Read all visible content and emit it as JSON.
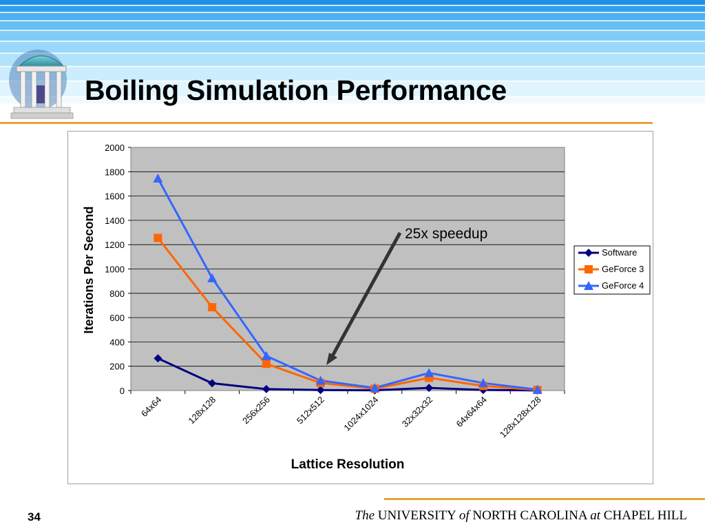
{
  "slide": {
    "title": "Boiling Simulation Performance",
    "page_number": "34",
    "footer": {
      "the": "The",
      "university": "UNIVERSITY",
      "of": "of",
      "state": "NORTH CAROLINA",
      "at": "at",
      "city": "CHAPEL HILL"
    },
    "logo_icon": "old-well-icon",
    "accent_color": "#E8A33A"
  },
  "chart_data": {
    "type": "line",
    "title": "",
    "xlabel": "Lattice Resolution",
    "ylabel": "Iterations Per Second",
    "categories": [
      "64x64",
      "128x128",
      "256x256",
      "512x512",
      "1024x1024",
      "32x32x32",
      "64x64x64",
      "128x128x128"
    ],
    "ylim": [
      0,
      2000
    ],
    "yticks": [
      0,
      200,
      400,
      600,
      800,
      1000,
      1200,
      1400,
      1600,
      1800,
      2000
    ],
    "grid": true,
    "legend_position": "right",
    "series": [
      {
        "name": "Software",
        "color": "#000080",
        "marker": "diamond",
        "values": [
          265,
          60,
          12,
          4,
          2,
          22,
          5,
          1
        ]
      },
      {
        "name": "GeForce 3",
        "color": "#FF6600",
        "marker": "square",
        "values": [
          1255,
          685,
          220,
          62,
          15,
          105,
          38,
          5
        ]
      },
      {
        "name": "GeForce 4",
        "color": "#3366FF",
        "marker": "triangle",
        "values": [
          1745,
          925,
          285,
          82,
          22,
          145,
          62,
          8
        ]
      }
    ],
    "annotation": {
      "text": "25x speedup"
    }
  }
}
